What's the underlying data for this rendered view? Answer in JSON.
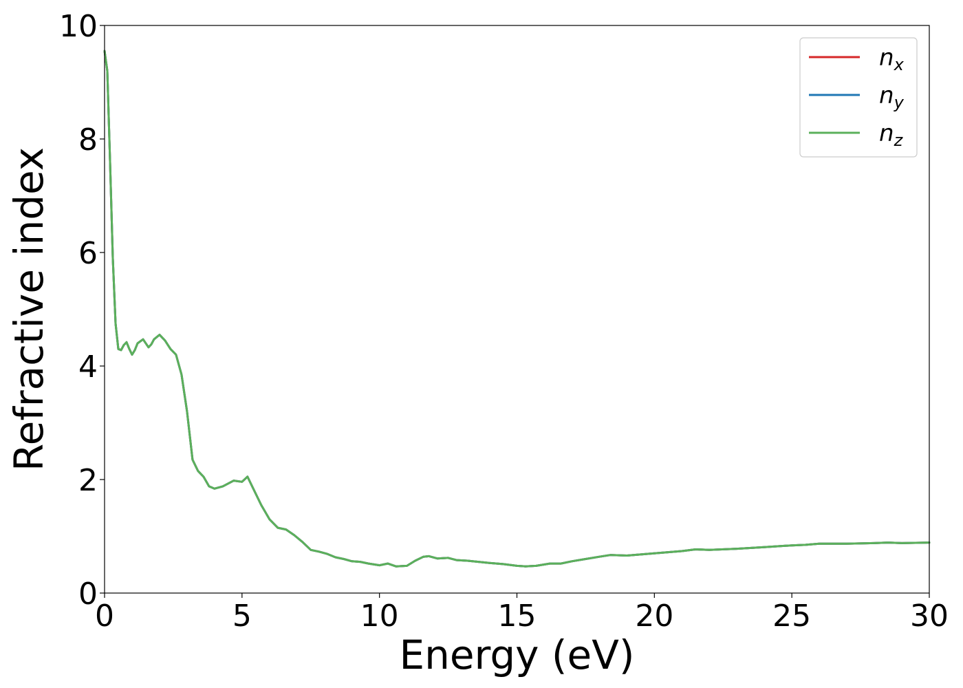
{
  "chart_data": {
    "type": "line",
    "xlabel": "Energy (eV)",
    "ylabel": "Refractive index",
    "xlim": [
      0,
      30
    ],
    "ylim": [
      0,
      10
    ],
    "xticks": [
      "0",
      "5",
      "10",
      "15",
      "20",
      "25",
      "30"
    ],
    "yticks": [
      "0",
      "2",
      "4",
      "6",
      "8",
      "10"
    ],
    "legend_position": "top-right",
    "grid": false,
    "x": [
      0.0,
      0.1,
      0.2,
      0.3,
      0.4,
      0.5,
      0.6,
      0.7,
      0.8,
      0.9,
      1.0,
      1.1,
      1.2,
      1.4,
      1.6,
      1.7,
      1.8,
      2.0,
      2.2,
      2.4,
      2.6,
      2.8,
      3.0,
      3.2,
      3.4,
      3.6,
      3.8,
      4.0,
      4.3,
      4.7,
      5.0,
      5.2,
      5.4,
      5.7,
      6.0,
      6.3,
      6.6,
      6.9,
      7.2,
      7.5,
      7.8,
      8.1,
      8.4,
      8.7,
      9.0,
      9.3,
      9.6,
      10.0,
      10.3,
      10.6,
      11.0,
      11.3,
      11.6,
      11.8,
      12.1,
      12.5,
      12.8,
      13.2,
      13.6,
      14.0,
      14.5,
      15.0,
      15.3,
      15.7,
      16.2,
      16.6,
      17.0,
      17.5,
      18.0,
      18.4,
      19.0,
      19.5,
      20.0,
      21.0,
      21.5,
      22.0,
      23.0,
      24.0,
      25.0,
      25.5,
      26.0,
      27.0,
      28.0,
      28.5,
      29.0,
      30.0
    ],
    "series": [
      {
        "name": "n_x",
        "color": "#d62728",
        "values": [
          9.55,
          9.2,
          7.6,
          5.9,
          4.75,
          4.3,
          4.28,
          4.37,
          4.42,
          4.3,
          4.2,
          4.28,
          4.4,
          4.47,
          4.33,
          4.38,
          4.47,
          4.55,
          4.45,
          4.3,
          4.2,
          3.85,
          3.2,
          2.35,
          2.15,
          2.05,
          1.88,
          1.84,
          1.88,
          1.98,
          1.96,
          2.05,
          1.85,
          1.55,
          1.3,
          1.15,
          1.12,
          1.02,
          0.9,
          0.76,
          0.73,
          0.69,
          0.63,
          0.6,
          0.56,
          0.55,
          0.52,
          0.49,
          0.52,
          0.47,
          0.48,
          0.57,
          0.64,
          0.65,
          0.61,
          0.62,
          0.58,
          0.57,
          0.55,
          0.53,
          0.51,
          0.48,
          0.47,
          0.48,
          0.52,
          0.52,
          0.56,
          0.6,
          0.64,
          0.67,
          0.66,
          0.68,
          0.7,
          0.74,
          0.77,
          0.76,
          0.78,
          0.81,
          0.84,
          0.85,
          0.87,
          0.87,
          0.88,
          0.89,
          0.88,
          0.89
        ]
      },
      {
        "name": "n_y",
        "color": "#1f77b4",
        "values": [
          9.55,
          9.2,
          7.6,
          5.9,
          4.75,
          4.3,
          4.28,
          4.37,
          4.42,
          4.3,
          4.2,
          4.28,
          4.4,
          4.47,
          4.33,
          4.38,
          4.47,
          4.55,
          4.45,
          4.3,
          4.2,
          3.85,
          3.2,
          2.35,
          2.15,
          2.05,
          1.88,
          1.84,
          1.88,
          1.98,
          1.96,
          2.05,
          1.85,
          1.55,
          1.3,
          1.15,
          1.12,
          1.02,
          0.9,
          0.76,
          0.73,
          0.69,
          0.63,
          0.6,
          0.56,
          0.55,
          0.52,
          0.49,
          0.52,
          0.47,
          0.48,
          0.57,
          0.64,
          0.65,
          0.61,
          0.62,
          0.58,
          0.57,
          0.55,
          0.53,
          0.51,
          0.48,
          0.47,
          0.48,
          0.52,
          0.52,
          0.56,
          0.6,
          0.64,
          0.67,
          0.66,
          0.68,
          0.7,
          0.74,
          0.77,
          0.76,
          0.78,
          0.81,
          0.84,
          0.85,
          0.87,
          0.87,
          0.88,
          0.89,
          0.88,
          0.89
        ]
      },
      {
        "name": "n_z",
        "color": "#5bb05b",
        "values": [
          9.55,
          9.2,
          7.6,
          5.9,
          4.75,
          4.3,
          4.28,
          4.37,
          4.42,
          4.3,
          4.2,
          4.28,
          4.4,
          4.47,
          4.33,
          4.38,
          4.47,
          4.55,
          4.45,
          4.3,
          4.2,
          3.85,
          3.2,
          2.35,
          2.15,
          2.05,
          1.88,
          1.84,
          1.88,
          1.98,
          1.96,
          2.05,
          1.85,
          1.55,
          1.3,
          1.15,
          1.12,
          1.02,
          0.9,
          0.76,
          0.73,
          0.69,
          0.63,
          0.6,
          0.56,
          0.55,
          0.52,
          0.49,
          0.52,
          0.47,
          0.48,
          0.57,
          0.64,
          0.65,
          0.61,
          0.62,
          0.58,
          0.57,
          0.55,
          0.53,
          0.51,
          0.48,
          0.47,
          0.48,
          0.52,
          0.52,
          0.56,
          0.6,
          0.64,
          0.67,
          0.66,
          0.68,
          0.7,
          0.74,
          0.77,
          0.76,
          0.78,
          0.81,
          0.84,
          0.85,
          0.87,
          0.87,
          0.88,
          0.89,
          0.88,
          0.89
        ]
      }
    ],
    "legend": [
      {
        "base": "n",
        "sub": "x"
      },
      {
        "base": "n",
        "sub": "y"
      },
      {
        "base": "n",
        "sub": "z"
      }
    ]
  }
}
